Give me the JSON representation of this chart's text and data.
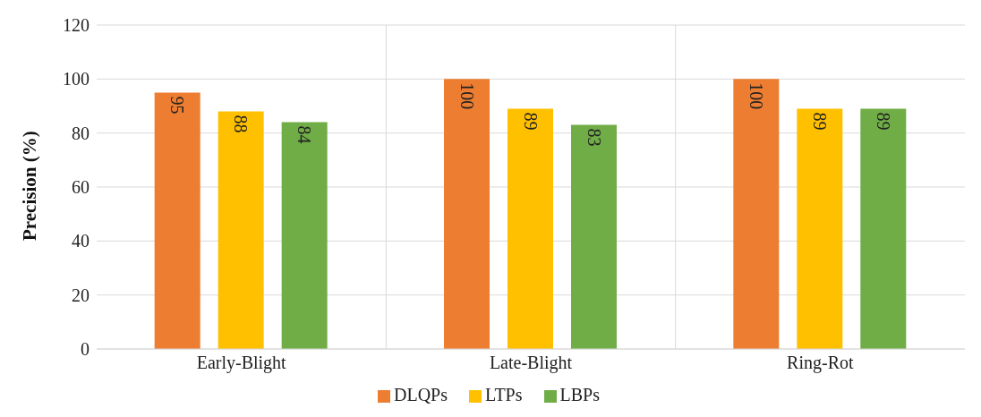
{
  "chart_data": {
    "type": "bar",
    "ylabel": "Precision (%)",
    "categories": [
      "Early-Blight",
      "Late-Blight",
      "Ring-Rot"
    ],
    "series": [
      {
        "name": "DLQPs",
        "color": "#ed7d31",
        "values": [
          95,
          100,
          100
        ]
      },
      {
        "name": "LTPs",
        "color": "#ffc000",
        "values": [
          88,
          89,
          89
        ]
      },
      {
        "name": "LBPs",
        "color": "#70ad47",
        "values": [
          84,
          83,
          89
        ]
      }
    ],
    "ylim": [
      0,
      120
    ],
    "yticks": [
      0,
      20,
      40,
      60,
      80,
      100,
      120
    ],
    "grid": true,
    "legend": "bottom",
    "data_labels": true
  }
}
